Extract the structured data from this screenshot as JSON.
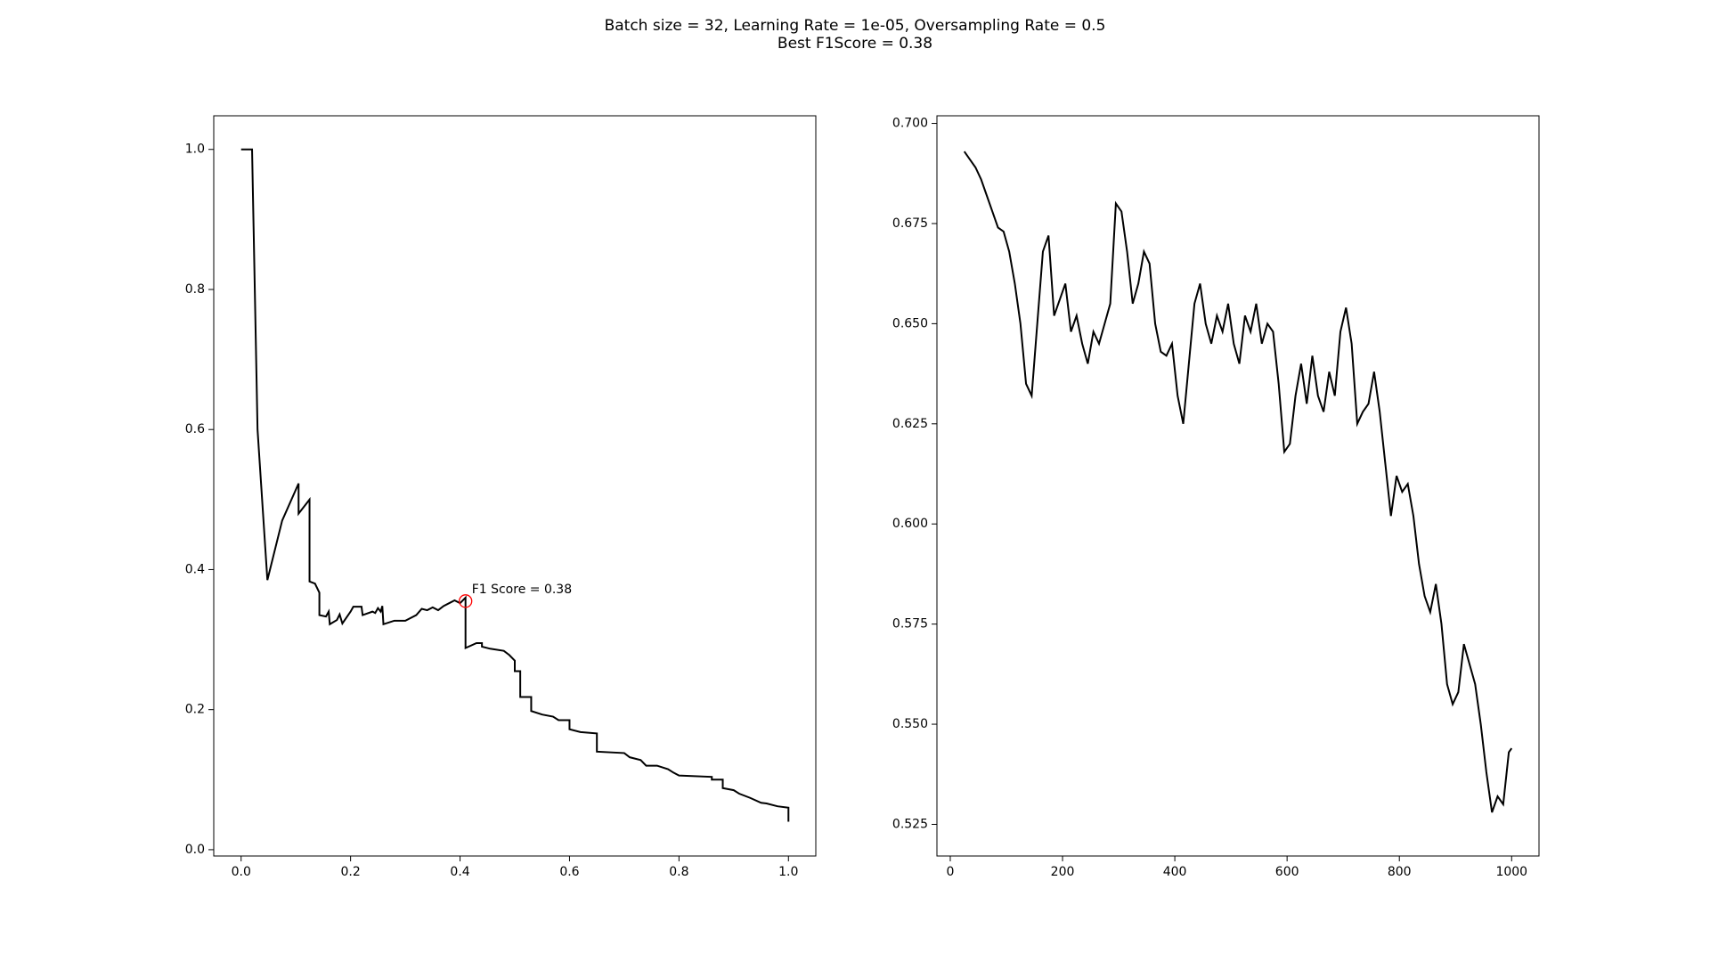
{
  "title": [
    "Batch size = 32, Learning Rate = 1e-05, Oversampling Rate = 0.5",
    "Best F1Score = 0.38"
  ],
  "chart_data": [
    {
      "type": "line",
      "color": "#000000",
      "x": [
        0,
        0.02,
        0.03,
        0.048,
        0.075,
        0.105,
        0.105,
        0.125,
        0.125,
        0.135,
        0.143,
        0.143,
        0.155,
        0.16,
        0.162,
        0.175,
        0.18,
        0.185,
        0.2,
        0.205,
        0.22,
        0.222,
        0.24,
        0.245,
        0.25,
        0.255,
        0.258,
        0.26,
        0.28,
        0.3,
        0.32,
        0.33,
        0.34,
        0.35,
        0.36,
        0.37,
        0.38,
        0.39,
        0.4,
        0.41,
        0.41,
        0.43,
        0.44,
        0.44,
        0.455,
        0.48,
        0.49,
        0.5,
        0.5,
        0.51,
        0.51,
        0.53,
        0.53,
        0.55,
        0.57,
        0.58,
        0.6,
        0.6,
        0.62,
        0.65,
        0.65,
        0.7,
        0.71,
        0.73,
        0.74,
        0.76,
        0.78,
        0.79,
        0.8,
        0.86,
        0.86,
        0.88,
        0.88,
        0.9,
        0.91,
        0.93,
        0.95,
        0.96,
        0.98,
        1.0,
        1.0
      ],
      "values": [
        1.0,
        1.0,
        0.6,
        0.385,
        0.47,
        0.523,
        0.48,
        0.5,
        0.383,
        0.38,
        0.367,
        0.335,
        0.333,
        0.34,
        0.322,
        0.328,
        0.336,
        0.323,
        0.34,
        0.347,
        0.347,
        0.335,
        0.34,
        0.338,
        0.345,
        0.34,
        0.348,
        0.322,
        0.327,
        0.327,
        0.335,
        0.344,
        0.342,
        0.346,
        0.342,
        0.348,
        0.352,
        0.356,
        0.352,
        0.36,
        0.288,
        0.295,
        0.295,
        0.29,
        0.287,
        0.284,
        0.278,
        0.27,
        0.255,
        0.255,
        0.218,
        0.218,
        0.198,
        0.193,
        0.19,
        0.185,
        0.185,
        0.172,
        0.168,
        0.166,
        0.14,
        0.138,
        0.132,
        0.128,
        0.12,
        0.12,
        0.115,
        0.11,
        0.106,
        0.104,
        0.1,
        0.1,
        0.088,
        0.085,
        0.08,
        0.074,
        0.067,
        0.066,
        0.062,
        0.06,
        0.04
      ],
      "xlim": [
        -0.05,
        1.05
      ],
      "ylim": [
        -0.009,
        1.048
      ],
      "xticks": [
        {
          "value": 0,
          "label": "0.0"
        },
        0.2,
        0.4,
        0.6,
        0.8,
        {
          "value": 1,
          "label": "1.0"
        }
      ],
      "yticks": [
        {
          "value": 0,
          "label": "0.0"
        },
        0.2,
        0.4,
        0.6,
        0.8,
        {
          "value": 1,
          "label": "1.0"
        }
      ],
      "annotations": [
        {
          "text": "F1 Score = 0.38",
          "x": 0.41,
          "y": 0.355,
          "color": "#ff0000"
        }
      ]
    },
    {
      "type": "line",
      "color": "#000000",
      "x": [
        25,
        35,
        45,
        55,
        65,
        75,
        85,
        95,
        105,
        115,
        125,
        135,
        145,
        155,
        165,
        175,
        185,
        195,
        205,
        215,
        225,
        235,
        245,
        255,
        265,
        275,
        285,
        295,
        305,
        315,
        325,
        335,
        345,
        355,
        365,
        375,
        385,
        395,
        405,
        415,
        425,
        435,
        445,
        455,
        465,
        475,
        485,
        495,
        505,
        515,
        525,
        535,
        545,
        555,
        565,
        575,
        585,
        595,
        605,
        615,
        625,
        635,
        645,
        655,
        665,
        675,
        685,
        695,
        705,
        715,
        725,
        735,
        745,
        755,
        765,
        775,
        785,
        795,
        805,
        815,
        825,
        835,
        845,
        855,
        865,
        875,
        885,
        895,
        905,
        915,
        925,
        935,
        945,
        955,
        965,
        975,
        985,
        995,
        1000
      ],
      "values": [
        0.693,
        0.691,
        0.689,
        0.686,
        0.682,
        0.678,
        0.674,
        0.673,
        0.668,
        0.66,
        0.65,
        0.635,
        0.632,
        0.65,
        0.668,
        0.672,
        0.652,
        0.656,
        0.66,
        0.648,
        0.652,
        0.645,
        0.64,
        0.648,
        0.645,
        0.65,
        0.655,
        0.68,
        0.678,
        0.668,
        0.655,
        0.66,
        0.668,
        0.665,
        0.65,
        0.643,
        0.642,
        0.645,
        0.632,
        0.625,
        0.64,
        0.655,
        0.66,
        0.65,
        0.645,
        0.652,
        0.648,
        0.655,
        0.645,
        0.64,
        0.652,
        0.648,
        0.655,
        0.645,
        0.65,
        0.648,
        0.635,
        0.618,
        0.62,
        0.632,
        0.64,
        0.63,
        0.642,
        0.632,
        0.628,
        0.638,
        0.632,
        0.648,
        0.654,
        0.645,
        0.625,
        0.628,
        0.63,
        0.638,
        0.628,
        0.615,
        0.602,
        0.612,
        0.608,
        0.61,
        0.602,
        0.59,
        0.582,
        0.578,
        0.585,
        0.575,
        0.56,
        0.555,
        0.558,
        0.57,
        0.565,
        0.56,
        0.55,
        0.538,
        0.528,
        0.532,
        0.53,
        0.543,
        0.544
      ],
      "xlim": [
        -23.75,
        1048.75
      ],
      "ylim": [
        0.5171,
        0.7019
      ],
      "xticks": [
        0,
        200,
        400,
        600,
        800,
        1000
      ],
      "yticks": [
        0.525,
        {
          "value": 0.55,
          "label": "0.550"
        },
        0.575,
        {
          "value": 0.6,
          "label": "0.600"
        },
        0.625,
        {
          "value": 0.65,
          "label": "0.650"
        },
        0.675,
        {
          "value": 0.7,
          "label": "0.700"
        }
      ]
    }
  ]
}
